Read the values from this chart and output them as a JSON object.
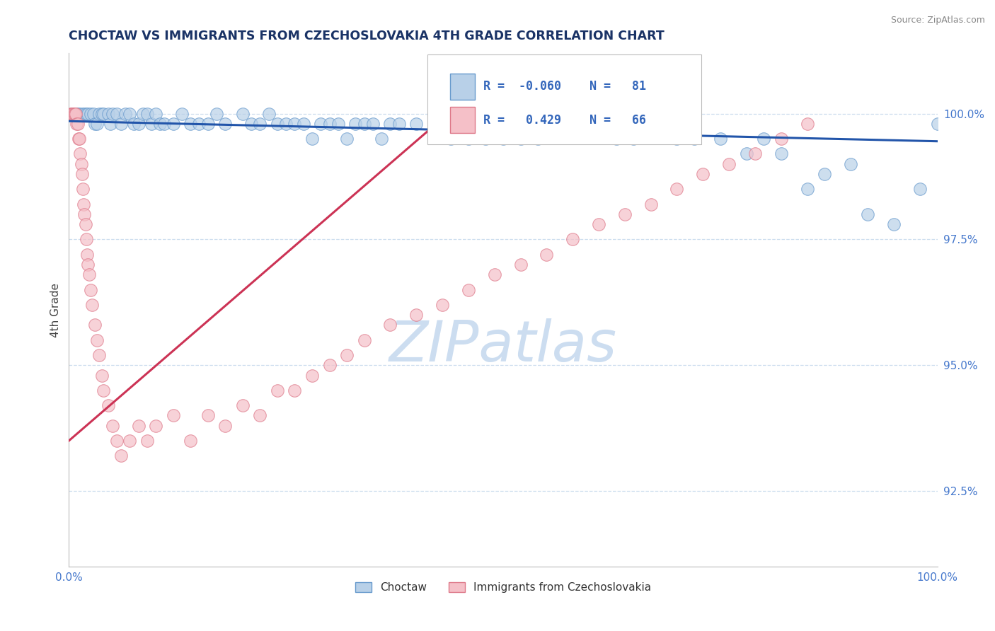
{
  "title": "CHOCTAW VS IMMIGRANTS FROM CZECHOSLOVAKIA 4TH GRADE CORRELATION CHART",
  "source_text": "Source: ZipAtlas.com",
  "ylabel": "4th Grade",
  "xmin": 0.0,
  "xmax": 1.0,
  "ymin": 91.0,
  "ymax": 101.2,
  "yticks": [
    92.5,
    95.0,
    97.5,
    100.0
  ],
  "ytick_labels": [
    "92.5%",
    "95.0%",
    "97.5%",
    "100.0%"
  ],
  "xticks": [
    0.0,
    0.5,
    1.0
  ],
  "xtick_labels": [
    "0.0%",
    "",
    "100.0%"
  ],
  "blue_R": -0.06,
  "blue_N": 81,
  "pink_R": 0.429,
  "pink_N": 66,
  "blue_color": "#b8d0e8",
  "blue_edge_color": "#6699cc",
  "pink_color": "#f5c0c8",
  "pink_edge_color": "#dd7788",
  "blue_line_color": "#2255aa",
  "pink_line_color": "#cc3355",
  "legend_color": "#3366bb",
  "watermark_color": "#ccddf0",
  "title_color": "#1a3366",
  "axis_label_color": "#444444",
  "tick_color": "#4477cc",
  "grid_color": "#ccddee",
  "blue_x": [
    0.005,
    0.008,
    0.01,
    0.012,
    0.015,
    0.018,
    0.02,
    0.022,
    0.025,
    0.028,
    0.03,
    0.032,
    0.035,
    0.038,
    0.04,
    0.045,
    0.048,
    0.05,
    0.055,
    0.06,
    0.065,
    0.07,
    0.075,
    0.08,
    0.085,
    0.09,
    0.095,
    0.1,
    0.105,
    0.11,
    0.12,
    0.13,
    0.14,
    0.15,
    0.16,
    0.17,
    0.18,
    0.2,
    0.21,
    0.22,
    0.23,
    0.24,
    0.25,
    0.26,
    0.27,
    0.28,
    0.29,
    0.3,
    0.31,
    0.32,
    0.33,
    0.34,
    0.35,
    0.36,
    0.37,
    0.38,
    0.4,
    0.42,
    0.44,
    0.46,
    0.48,
    0.5,
    0.52,
    0.54,
    0.56,
    0.6,
    0.63,
    0.65,
    0.7,
    0.72,
    0.75,
    0.78,
    0.8,
    0.82,
    0.85,
    0.87,
    0.9,
    0.92,
    0.95,
    0.98,
    1.0
  ],
  "blue_y": [
    100.0,
    100.0,
    100.0,
    100.0,
    100.0,
    100.0,
    100.0,
    100.0,
    100.0,
    100.0,
    99.8,
    99.8,
    100.0,
    100.0,
    100.0,
    100.0,
    99.8,
    100.0,
    100.0,
    99.8,
    100.0,
    100.0,
    99.8,
    99.8,
    100.0,
    100.0,
    99.8,
    100.0,
    99.8,
    99.8,
    99.8,
    100.0,
    99.8,
    99.8,
    99.8,
    100.0,
    99.8,
    100.0,
    99.8,
    99.8,
    100.0,
    99.8,
    99.8,
    99.8,
    99.8,
    99.5,
    99.8,
    99.8,
    99.8,
    99.5,
    99.8,
    99.8,
    99.8,
    99.5,
    99.8,
    99.8,
    99.8,
    99.8,
    99.5,
    99.5,
    99.5,
    99.5,
    99.5,
    99.5,
    99.8,
    99.8,
    99.5,
    99.5,
    99.5,
    99.5,
    99.5,
    99.2,
    99.5,
    99.2,
    98.5,
    98.8,
    99.0,
    98.0,
    97.8,
    98.5,
    99.8
  ],
  "pink_x": [
    0.002,
    0.003,
    0.004,
    0.005,
    0.006,
    0.007,
    0.008,
    0.009,
    0.01,
    0.011,
    0.012,
    0.013,
    0.014,
    0.015,
    0.016,
    0.017,
    0.018,
    0.019,
    0.02,
    0.021,
    0.022,
    0.023,
    0.025,
    0.027,
    0.03,
    0.032,
    0.035,
    0.038,
    0.04,
    0.045,
    0.05,
    0.055,
    0.06,
    0.07,
    0.08,
    0.09,
    0.1,
    0.12,
    0.14,
    0.16,
    0.18,
    0.2,
    0.22,
    0.24,
    0.26,
    0.28,
    0.3,
    0.32,
    0.34,
    0.37,
    0.4,
    0.43,
    0.46,
    0.49,
    0.52,
    0.55,
    0.58,
    0.61,
    0.64,
    0.67,
    0.7,
    0.73,
    0.76,
    0.79,
    0.82,
    0.85
  ],
  "pink_y": [
    100.0,
    100.0,
    100.0,
    100.0,
    100.0,
    100.0,
    100.0,
    99.8,
    99.8,
    99.5,
    99.5,
    99.2,
    99.0,
    98.8,
    98.5,
    98.2,
    98.0,
    97.8,
    97.5,
    97.2,
    97.0,
    96.8,
    96.5,
    96.2,
    95.8,
    95.5,
    95.2,
    94.8,
    94.5,
    94.2,
    93.8,
    93.5,
    93.2,
    93.5,
    93.8,
    93.5,
    93.8,
    94.0,
    93.5,
    94.0,
    93.8,
    94.2,
    94.0,
    94.5,
    94.5,
    94.8,
    95.0,
    95.2,
    95.5,
    95.8,
    96.0,
    96.2,
    96.5,
    96.8,
    97.0,
    97.2,
    97.5,
    97.8,
    98.0,
    98.2,
    98.5,
    98.8,
    99.0,
    99.2,
    99.5,
    99.8
  ],
  "blue_trend_x": [
    0.0,
    1.0
  ],
  "blue_trend_y": [
    99.85,
    99.45
  ],
  "pink_trend_x": [
    0.0,
    0.45
  ],
  "pink_trend_y": [
    93.5,
    100.2
  ]
}
